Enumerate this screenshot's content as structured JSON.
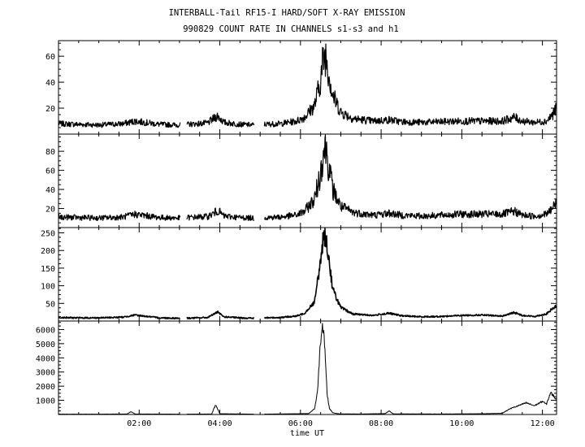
{
  "chart_data": {
    "type": "line",
    "title": "INTERBALL-Tail RF15-I HARD/SOFT X-RAY EMISSION",
    "subtitle": "990829  COUNT RATE IN CHANNELS s1-s3 and h1",
    "xlabel": "time UT",
    "xlim": [
      0,
      12.35
    ],
    "x_ticks": [
      2,
      4,
      6,
      8,
      10,
      12
    ],
    "x_tick_labels": [
      "02:00",
      "04:00",
      "06:00",
      "08:00",
      "10:00",
      "12:00"
    ],
    "data_gaps": [
      [
        3.02,
        3.18
      ],
      [
        4.85,
        5.1
      ]
    ],
    "grid": false,
    "panels": [
      {
        "ylim": [
          0,
          72
        ],
        "y_ticks": [
          20,
          40,
          60
        ],
        "y_tick_labels": [
          "20",
          "40",
          "60"
        ],
        "x": [
          0.0,
          0.5,
          1.0,
          1.6,
          1.9,
          2.5,
          3.0,
          3.2,
          3.7,
          3.85,
          3.95,
          4.1,
          4.5,
          4.85,
          5.1,
          5.5,
          5.9,
          6.1,
          6.35,
          6.5,
          6.55,
          6.62,
          6.7,
          6.8,
          7.0,
          7.3,
          7.8,
          8.2,
          8.5,
          9.0,
          9.5,
          10.0,
          10.5,
          11.0,
          11.3,
          11.5,
          11.8,
          12.1,
          12.25,
          12.35
        ],
        "values": [
          8,
          7.5,
          7,
          8,
          10,
          7.5,
          7,
          7.5,
          8.5,
          12,
          14,
          9,
          7.5,
          7,
          7.5,
          8,
          10,
          13,
          22,
          42,
          55,
          62,
          48,
          30,
          17,
          12,
          10,
          11,
          9.5,
          9,
          9.5,
          10,
          10,
          10,
          13,
          10,
          9,
          10,
          15,
          20
        ]
      },
      {
        "ylim": [
          0,
          98
        ],
        "y_ticks": [
          20,
          40,
          60,
          80
        ],
        "y_tick_labels": [
          "20",
          "40",
          "60",
          "80"
        ],
        "x": [
          0.0,
          0.5,
          1.0,
          1.6,
          1.9,
          2.5,
          3.0,
          3.2,
          3.7,
          3.85,
          3.95,
          4.1,
          4.5,
          4.85,
          5.1,
          5.5,
          5.9,
          6.1,
          6.35,
          6.5,
          6.55,
          6.62,
          6.7,
          6.8,
          7.0,
          7.3,
          7.8,
          8.2,
          8.5,
          9.0,
          9.5,
          10.0,
          10.5,
          11.0,
          11.3,
          11.5,
          11.8,
          12.1,
          12.25,
          12.35
        ],
        "values": [
          11,
          10.5,
          10,
          11,
          14,
          10.5,
          10,
          10.5,
          11.5,
          15,
          18,
          12,
          10.5,
          10,
          10.5,
          11,
          13,
          17,
          30,
          58,
          75,
          88,
          65,
          40,
          22,
          16,
          13,
          15,
          13,
          12,
          13,
          14,
          14,
          14,
          17,
          13,
          12,
          14,
          20,
          27
        ]
      },
      {
        "ylim": [
          0,
          265
        ],
        "y_ticks": [
          50,
          100,
          150,
          200,
          250
        ],
        "y_tick_labels": [
          "50",
          "100",
          "150",
          "200",
          "250"
        ],
        "x": [
          0.0,
          0.5,
          1.0,
          1.6,
          1.9,
          2.5,
          3.0,
          3.2,
          3.7,
          3.85,
          3.95,
          4.1,
          4.5,
          4.85,
          5.1,
          5.5,
          5.9,
          6.1,
          6.35,
          6.5,
          6.55,
          6.62,
          6.7,
          6.8,
          7.0,
          7.3,
          7.8,
          8.2,
          8.5,
          9.0,
          9.5,
          10.0,
          10.5,
          11.0,
          11.3,
          11.5,
          11.8,
          12.1,
          12.25,
          12.35
        ],
        "values": [
          10,
          9,
          9,
          11,
          17,
          9,
          8,
          8,
          10,
          20,
          25,
          12,
          9,
          8,
          9,
          10,
          14,
          22,
          55,
          170,
          225,
          245,
          180,
          90,
          38,
          20,
          16,
          22,
          15,
          12,
          13,
          16,
          17,
          14,
          24,
          16,
          13,
          20,
          35,
          42
        ]
      },
      {
        "ylim": [
          0,
          6600
        ],
        "y_ticks": [
          1000,
          2000,
          3000,
          4000,
          5000,
          6000
        ],
        "y_tick_labels": [
          "1000",
          "2000",
          "3000",
          "4000",
          "5000",
          "6000"
        ],
        "x": [
          0.0,
          1.0,
          1.7,
          1.8,
          1.9,
          3.0,
          3.2,
          3.8,
          3.85,
          3.9,
          4.0,
          4.8,
          5.1,
          6.2,
          6.35,
          6.42,
          6.48,
          6.52,
          6.55,
          6.58,
          6.62,
          6.66,
          6.72,
          6.8,
          6.95,
          7.5,
          8.1,
          8.2,
          8.3,
          9.5,
          10.5,
          11.0,
          11.2,
          11.4,
          11.6,
          11.8,
          12.0,
          12.1,
          12.2,
          12.3,
          12.35
        ],
        "values": [
          20,
          20,
          30,
          200,
          30,
          20,
          20,
          30,
          400,
          650,
          50,
          20,
          20,
          60,
          400,
          1500,
          4300,
          5800,
          6200,
          5600,
          3800,
          1400,
          400,
          120,
          40,
          30,
          60,
          250,
          40,
          30,
          50,
          80,
          400,
          600,
          800,
          600,
          900,
          700,
          1500,
          1200,
          1000
        ]
      }
    ]
  }
}
